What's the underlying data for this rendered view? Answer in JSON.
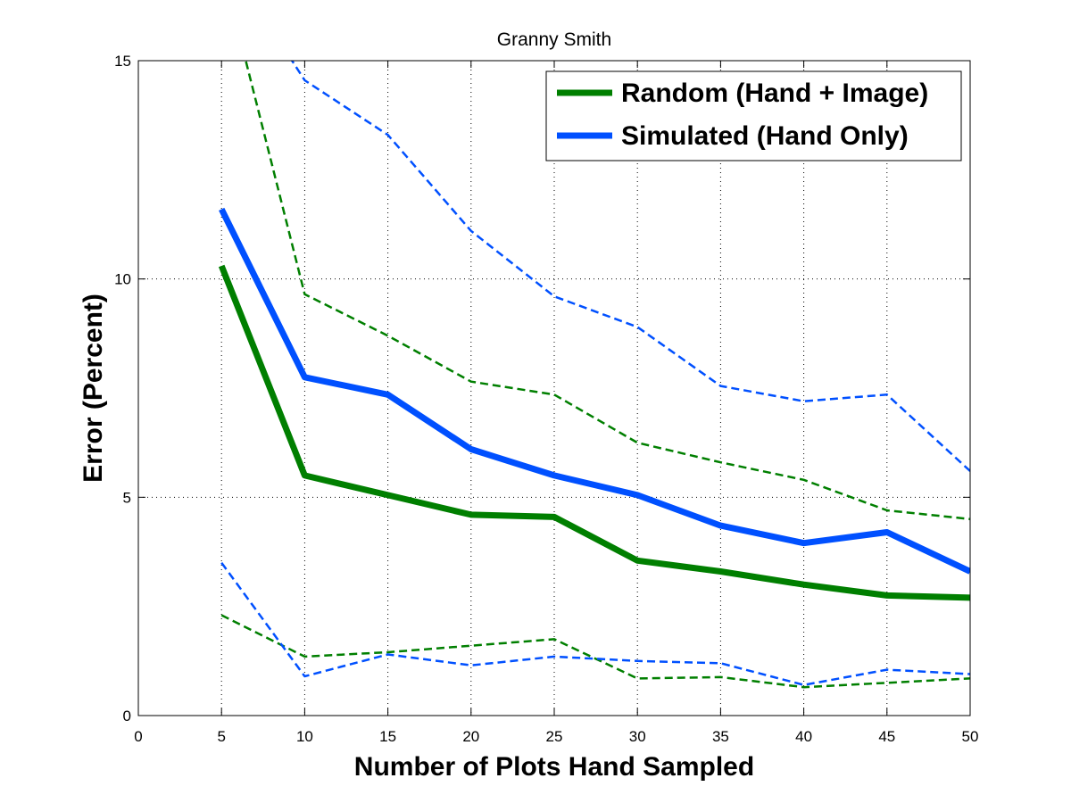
{
  "chart_data": {
    "type": "line",
    "title": "Granny Smith",
    "xlabel": "Number of Plots Hand Sampled",
    "ylabel": "Error (Percent)",
    "xlim": [
      0,
      50
    ],
    "ylim": [
      0,
      15
    ],
    "xticks": [
      0,
      5,
      10,
      15,
      20,
      25,
      30,
      35,
      40,
      45,
      50
    ],
    "yticks": [
      0,
      5,
      10,
      15
    ],
    "x_tick_labels": [
      "0",
      "5",
      "10",
      "15",
      "20",
      "25",
      "30",
      "35",
      "40",
      "45",
      "50"
    ],
    "y_tick_labels": [
      "0",
      "5",
      "10",
      "15"
    ],
    "grid": true,
    "legend_position": "top-right",
    "series": [
      {
        "name": "Random (Hand + Image)",
        "color": "#007f00",
        "style": "solid",
        "x": [
          5,
          10,
          15,
          20,
          25,
          30,
          35,
          40,
          45,
          50
        ],
        "y": [
          10.3,
          5.5,
          5.05,
          4.6,
          4.55,
          3.55,
          3.3,
          3.0,
          2.75,
          2.7
        ]
      },
      {
        "name": "Simulated (Hand Only)",
        "color": "#0050ff",
        "style": "solid",
        "x": [
          5,
          10,
          15,
          20,
          25,
          30,
          35,
          40,
          45,
          50
        ],
        "y": [
          11.6,
          7.75,
          7.35,
          6.1,
          5.5,
          5.05,
          4.35,
          3.95,
          4.2,
          3.3
        ]
      },
      {
        "color": "#007f00",
        "style": "dashed",
        "x": [
          5,
          10,
          15,
          20,
          25,
          30,
          35,
          40,
          45,
          50
        ],
        "y": [
          17.2,
          9.65,
          8.7,
          7.65,
          7.35,
          6.25,
          5.8,
          5.4,
          4.7,
          4.5
        ]
      },
      {
        "color": "#007f00",
        "style": "dashed",
        "x": [
          5,
          10,
          15,
          20,
          25,
          30,
          35,
          40,
          45,
          50
        ],
        "y": [
          2.3,
          1.35,
          1.45,
          1.6,
          1.75,
          0.85,
          0.88,
          0.65,
          0.75,
          0.85
        ]
      },
      {
        "color": "#0050ff",
        "style": "dashed",
        "x": [
          5,
          10,
          15,
          20,
          25,
          30,
          35,
          40,
          45,
          50
        ],
        "y": [
          17.5,
          14.55,
          13.3,
          11.1,
          9.6,
          8.9,
          7.55,
          7.2,
          7.35,
          5.6
        ]
      },
      {
        "color": "#0050ff",
        "style": "dashed",
        "x": [
          5,
          10,
          15,
          20,
          25,
          30,
          35,
          40,
          45,
          50
        ],
        "y": [
          3.5,
          0.9,
          1.4,
          1.15,
          1.35,
          1.25,
          1.2,
          0.7,
          1.05,
          0.95
        ]
      }
    ]
  }
}
